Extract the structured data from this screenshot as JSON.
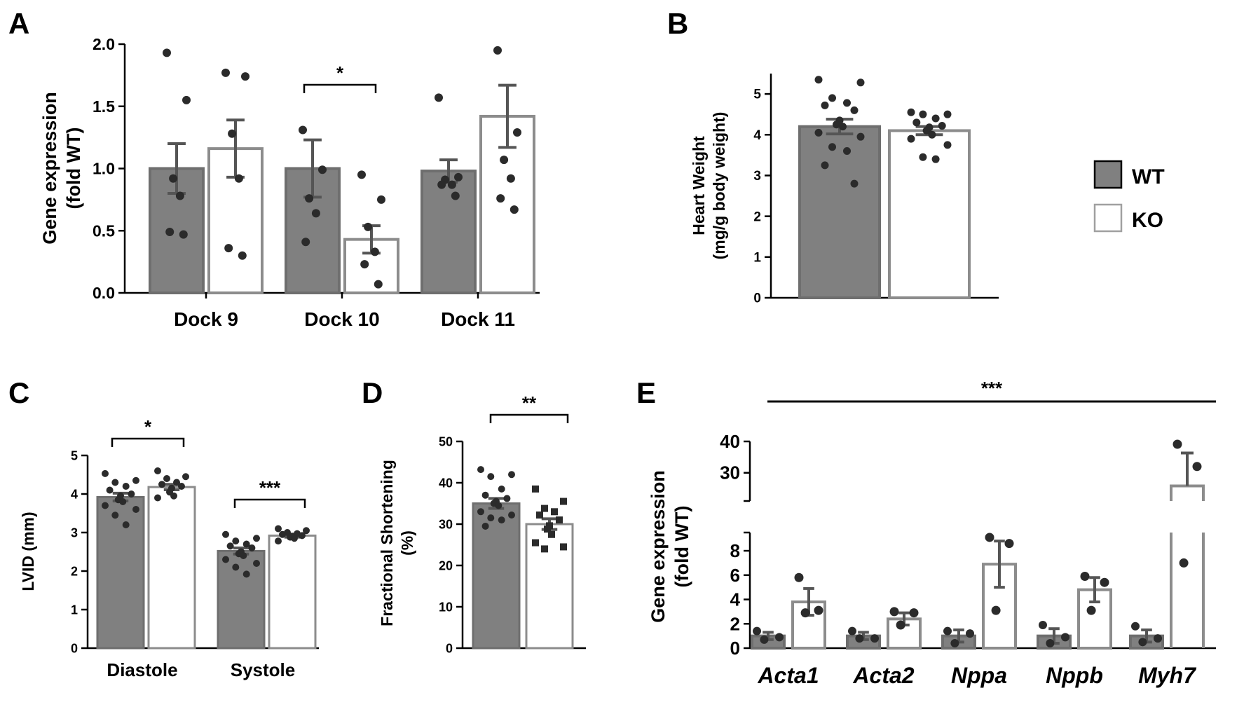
{
  "colors": {
    "wt_fill": "#808080",
    "wt_stroke": "#6e6e6e",
    "ko_fill": "#ffffff",
    "ko_stroke": "#8c8c8c",
    "dot": "#2b2b2b",
    "axis": "#000000"
  },
  "legend": {
    "wt": "WT",
    "ko": "KO"
  },
  "chart_data": [
    {
      "panel": "A",
      "type": "bar",
      "title": "",
      "ylabel_line1": "Gene expression",
      "ylabel_line2": "(fold WT)",
      "ylim": [
        0,
        2.0
      ],
      "yticks": [
        "0.0",
        "0.5",
        "1.0",
        "1.5",
        "2.0"
      ],
      "categories": [
        "Dock 9",
        "Dock 10",
        "Dock 11"
      ],
      "series": [
        {
          "name": "WT",
          "values": [
            1.0,
            1.0,
            0.98
          ],
          "errors": [
            0.2,
            0.23,
            0.09
          ],
          "points": [
            [
              1.93,
              1.55,
              0.92,
              0.78,
              0.49,
              0.47
            ],
            [
              1.31,
              0.99,
              0.76,
              0.64,
              0.41
            ],
            [
              1.57,
              0.93,
              0.91,
              0.87,
              0.87,
              0.78
            ]
          ]
        },
        {
          "name": "KO",
          "values": [
            1.16,
            0.43,
            1.42
          ],
          "errors": [
            0.23,
            0.11,
            0.25
          ],
          "points": [
            [
              1.77,
              1.74,
              1.28,
              0.92,
              0.36,
              0.3
            ],
            [
              0.95,
              0.75,
              0.53,
              0.33,
              0.23,
              0.07
            ],
            [
              1.95,
              1.29,
              1.07,
              0.92,
              0.76,
              0.67
            ]
          ]
        }
      ],
      "significance": [
        {
          "category": "Dock 10",
          "label": "*"
        }
      ]
    },
    {
      "panel": "B",
      "type": "bar",
      "title": "",
      "ylabel_line1": "Heart Weight",
      "ylabel_line2": "(mg/g body weight)",
      "ylim": [
        0,
        5.5
      ],
      "yticks": [
        "0",
        "1",
        "2",
        "3",
        "4",
        "5"
      ],
      "categories": [
        "WT",
        "KO"
      ],
      "values": [
        4.2,
        4.1
      ],
      "errors": [
        0.18,
        0.1
      ],
      "points": [
        [
          5.35,
          5.28,
          4.9,
          4.78,
          4.72,
          4.6,
          4.35,
          4.25,
          4.2,
          4.05,
          3.95,
          3.7,
          3.6,
          3.25,
          2.8
        ],
        [
          4.55,
          4.5,
          4.5,
          4.4,
          4.3,
          4.22,
          4.18,
          4.1,
          4.0,
          3.9,
          3.75,
          3.45,
          3.4
        ]
      ]
    },
    {
      "panel": "C",
      "type": "bar",
      "title": "",
      "ylabel": "LVID (mm)",
      "ylim": [
        0,
        5
      ],
      "yticks": [
        "0",
        "1",
        "2",
        "3",
        "4",
        "5"
      ],
      "categories": [
        "Diastole",
        "Systole"
      ],
      "series": [
        {
          "name": "WT",
          "values": [
            3.92,
            2.52
          ],
          "errors": [
            0.1,
            0.08
          ],
          "points": [
            [
              4.53,
              4.35,
              4.3,
              4.2,
              4.1,
              4.0,
              3.95,
              3.85,
              3.8,
              3.7,
              3.6,
              3.45,
              3.2
            ],
            [
              2.95,
              2.85,
              2.78,
              2.7,
              2.65,
              2.6,
              2.5,
              2.45,
              2.4,
              2.3,
              2.2,
              2.1,
              1.92
            ]
          ]
        },
        {
          "name": "KO",
          "values": [
            4.18,
            2.92
          ],
          "errors": [
            0.07,
            0.04
          ],
          "points": [
            [
              4.6,
              4.45,
              4.4,
              4.3,
              4.25,
              4.2,
              4.15,
              4.05,
              3.95,
              3.9
            ],
            [
              3.1,
              3.05,
              3.0,
              2.97,
              2.95,
              2.92,
              2.9,
              2.88,
              2.85,
              2.78
            ]
          ]
        }
      ],
      "significance": [
        {
          "category": "Diastole",
          "label": "*"
        },
        {
          "category": "Systole",
          "label": "***"
        }
      ]
    },
    {
      "panel": "D",
      "type": "bar",
      "title": "",
      "ylabel_line1": "Fractional Shortening",
      "ylabel_line2": "(%)",
      "ylim": [
        0,
        50
      ],
      "yticks": [
        "0",
        "10",
        "20",
        "30",
        "40",
        "50"
      ],
      "categories": [
        "WT",
        "KO"
      ],
      "values": [
        35.0,
        30.0
      ],
      "errors": [
        1.2,
        1.3
      ],
      "points": [
        [
          43.2,
          42.0,
          41.5,
          38.5,
          37.0,
          36.2,
          35.5,
          35.0,
          34.5,
          33.0,
          32.2,
          31.5,
          31.0,
          29.5
        ],
        [
          38.5,
          35.5,
          33.8,
          33.0,
          32.2,
          31.0,
          29.6,
          28.8,
          27.5,
          25.5,
          24.5,
          24.0
        ]
      ],
      "significance": [
        {
          "label": "**"
        }
      ]
    },
    {
      "panel": "E",
      "type": "bar",
      "title": "",
      "ylabel_line1": "Gene expression",
      "ylabel_line2": "(fold WT)",
      "ylim_lower": [
        0,
        9.5
      ],
      "yticks_lower": [
        "0",
        "2",
        "4",
        "6",
        "8"
      ],
      "ylim_upper": [
        21,
        40
      ],
      "yticks_upper": [
        "30",
        "40"
      ],
      "categories": [
        "Acta1",
        "Acta2",
        "Nppa",
        "Nppb",
        "Myh7"
      ],
      "series": [
        {
          "name": "WT",
          "values": [
            1.0,
            1.0,
            1.0,
            1.0,
            1.0
          ],
          "errors": [
            0.3,
            0.3,
            0.5,
            0.6,
            0.5
          ],
          "points": [
            [
              1.4,
              0.9,
              0.7
            ],
            [
              1.4,
              0.8,
              0.8
            ],
            [
              1.4,
              1.2,
              0.4
            ],
            [
              1.9,
              0.9,
              0.4
            ],
            [
              1.8,
              0.8,
              0.5
            ]
          ]
        },
        {
          "name": "KO",
          "values": [
            3.8,
            2.4,
            6.9,
            4.8,
            25.8
          ],
          "errors": [
            1.1,
            0.5,
            1.9,
            1.0,
            10.5
          ],
          "points": [
            [
              5.8,
              3.1,
              2.9
            ],
            [
              3.0,
              2.9,
              1.9
            ],
            [
              9.1,
              8.6,
              3.1
            ],
            [
              5.9,
              5.4,
              3.1
            ],
            [
              39.1,
              32.0,
              7.0
            ]
          ]
        }
      ],
      "significance": [
        {
          "label": "***"
        }
      ]
    }
  ],
  "panel_labels": [
    "A",
    "B",
    "C",
    "D",
    "E"
  ]
}
